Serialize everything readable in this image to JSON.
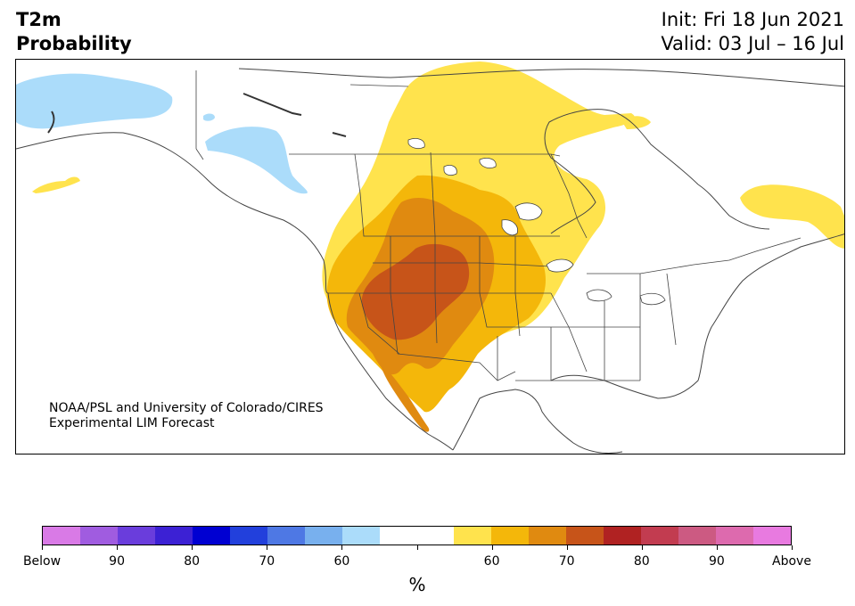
{
  "header": {
    "variable": "T2m",
    "product": "Probability",
    "init": "Init: Fri 18 Jun 2021",
    "valid": "Valid: 03 Jul – 16 Jul"
  },
  "credit": {
    "line1": "NOAA/PSL and University of Colorado/CIRES",
    "line2": "Experimental LIM Forecast"
  },
  "colorbar": {
    "unit": "%",
    "colors": [
      "#d97ae6",
      "#a05ce0",
      "#6a3ddc",
      "#3c21d4",
      "#0000d2",
      "#2240dc",
      "#4e78e4",
      "#78b0ee",
      "#abdcfa",
      "#ffffff",
      "#ffffff",
      "#ffe34d",
      "#f4b70a",
      "#e08a10",
      "#c75419",
      "#b02222",
      "#c23c50",
      "#cc5a82",
      "#dd6aae",
      "#e87ae0"
    ],
    "labels": [
      "Below",
      "90",
      "80",
      "70",
      "60",
      "",
      "60",
      "70",
      "80",
      "90",
      "Above"
    ]
  },
  "map": {
    "region": "North America",
    "colors": {
      "cold_light_blue": "#abdcfa",
      "warm_55_60": "#ffe34d",
      "warm_60_65": "#f4b70a",
      "warm_65_70": "#e08a10",
      "warm_70_75": "#c75419",
      "boundary": "#444444"
    }
  }
}
